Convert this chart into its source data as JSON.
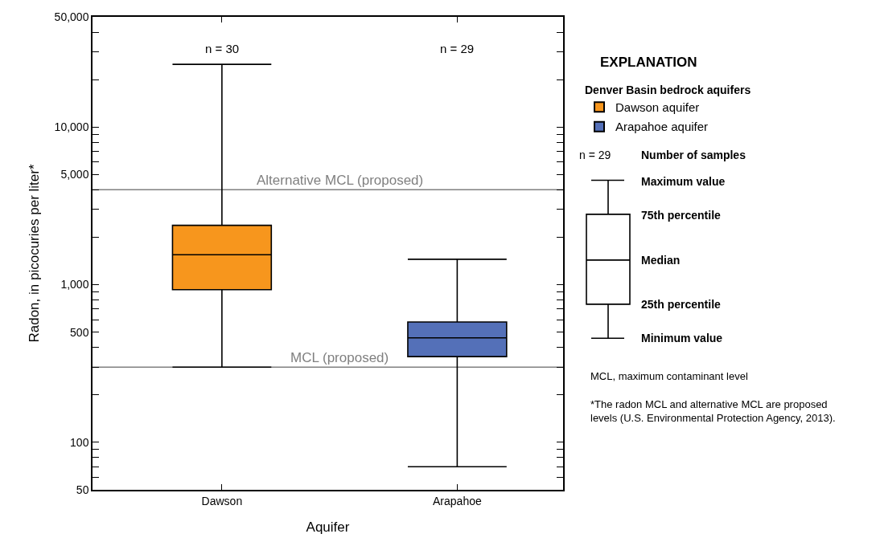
{
  "chart_data": {
    "type": "box",
    "xlabel": "Aquifer",
    "ylabel": "Radon, in picocuries per liter*",
    "legend_title": "Denver Basin bedrock aquifers",
    "categories": [
      "Dawson",
      "Arapahoe"
    ],
    "series": [
      {
        "name": "Dawson aquifer",
        "color": "#f7961d",
        "boxes": [
          {
            "low": 300,
            "q1": 930,
            "median": 1550,
            "q3": 2380,
            "high": 25000
          },
          null
        ]
      },
      {
        "name": "Arapahoe aquifer",
        "color": "#5470b8",
        "boxes": [
          null,
          {
            "low": 70,
            "q1": 350,
            "median": 460,
            "q3": 580,
            "high": 1450
          }
        ]
      }
    ],
    "log": true,
    "ylim": [
      50,
      50000
    ],
    "yticks": [
      50,
      {
        "value": 60,
        "label": null
      },
      {
        "value": 70,
        "label": null
      },
      {
        "value": 80,
        "label": null
      },
      {
        "value": 90,
        "label": null
      },
      100,
      {
        "value": 200,
        "label": null
      },
      {
        "value": 300,
        "label": null
      },
      {
        "value": 400,
        "label": null
      },
      500,
      {
        "value": 600,
        "label": null
      },
      {
        "value": 700,
        "label": null
      },
      {
        "value": 800,
        "label": null
      },
      {
        "value": 900,
        "label": null
      },
      {
        "value": 1000,
        "label": "1,000"
      },
      {
        "value": 2000,
        "label": null
      },
      {
        "value": 3000,
        "label": null
      },
      {
        "value": 4000,
        "label": null
      },
      {
        "value": 5000,
        "label": "5,000"
      },
      {
        "value": 6000,
        "label": null
      },
      {
        "value": 7000,
        "label": null
      },
      {
        "value": 8000,
        "label": null
      },
      {
        "value": 9000,
        "label": null
      },
      {
        "value": 10000,
        "label": "10,000"
      },
      {
        "value": 20000,
        "label": null
      },
      {
        "value": 30000,
        "label": null
      },
      {
        "value": 40000,
        "label": null
      },
      {
        "value": 50000,
        "label": "50,000"
      }
    ],
    "ref_lines": [
      {
        "axis": "y",
        "value": 4000,
        "label": "Alternative MCL (proposed)",
        "color": "#808080"
      },
      {
        "axis": "y",
        "value": 300,
        "label": "MCL (proposed)",
        "color": "#808080"
      }
    ],
    "legend": "right",
    "annotations": [
      "n = 30",
      "n = 29",
      "EXPLANATION",
      "n = 29",
      "Number of samples",
      "Maximum value",
      "75th percentile",
      "Median",
      "25th percentile",
      "Minimum value",
      "MCL, maximum contaminant level",
      "*The radon MCL and alternative MCL are proposed levels (U.S. Environmental Protection Agency, 2013)."
    ]
  }
}
